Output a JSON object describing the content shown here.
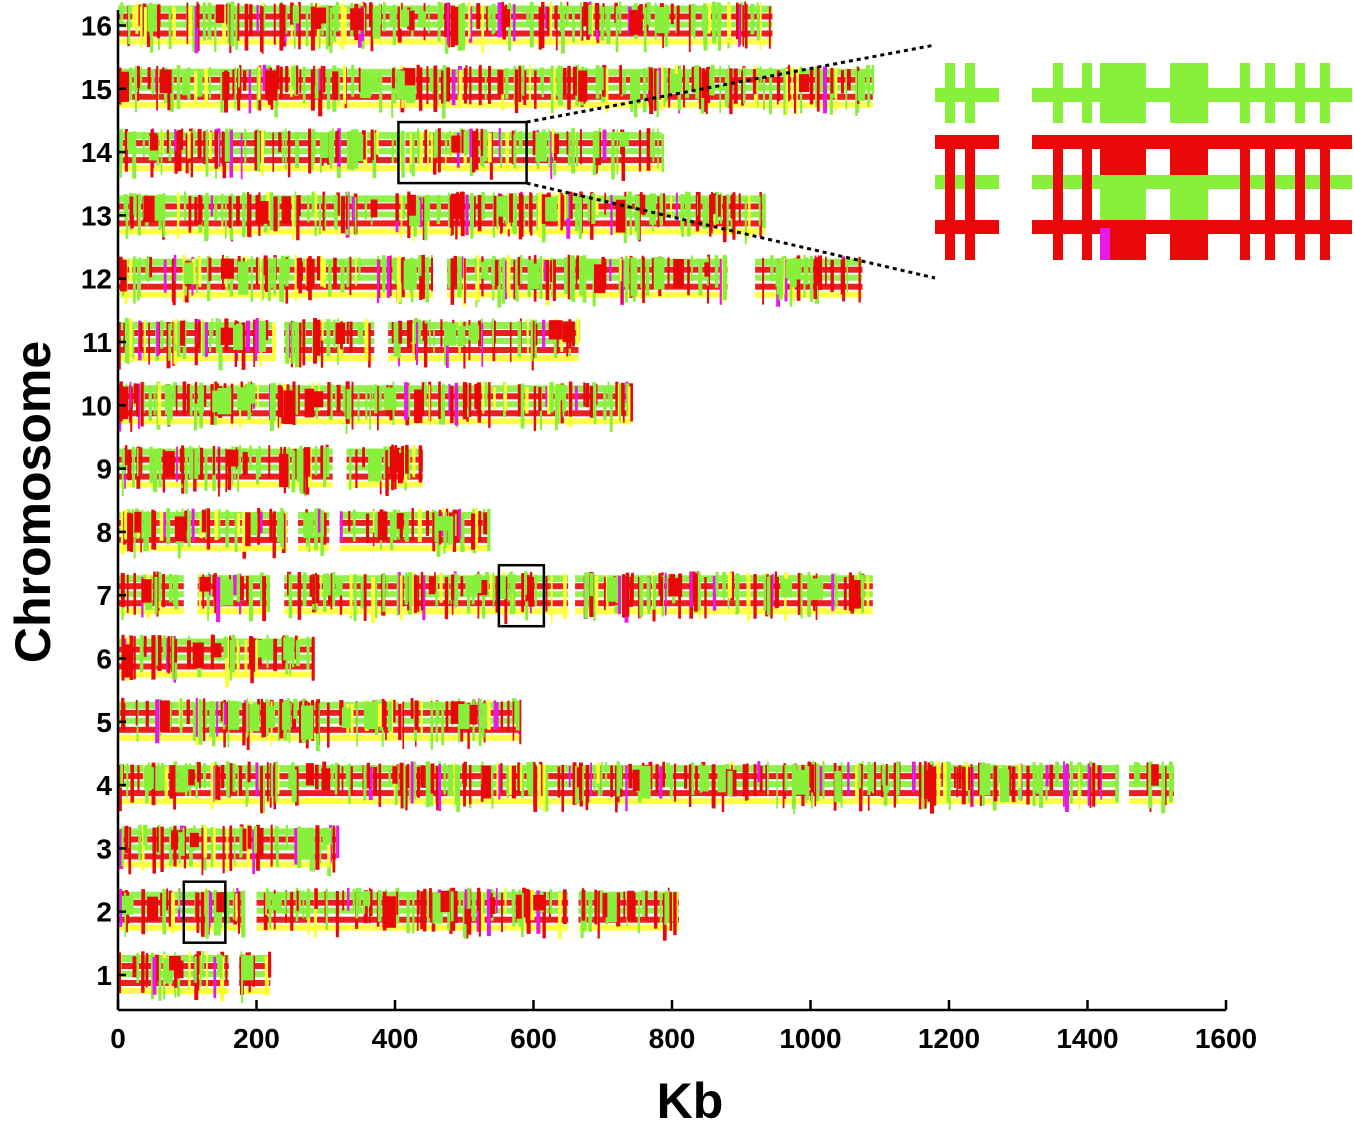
{
  "chart_data": {
    "type": "track",
    "xlabel": "Kb",
    "ylabel": "Chromosome",
    "xlim": [
      0,
      1600
    ],
    "xticks": [
      "0",
      "200",
      "400",
      "600",
      "800",
      "1000",
      "1200",
      "1400",
      "1600"
    ],
    "yticks": [
      "1",
      "2",
      "3",
      "4",
      "5",
      "6",
      "7",
      "8",
      "9",
      "10",
      "11",
      "12",
      "13",
      "14",
      "15",
      "16"
    ],
    "grid": false,
    "colors": {
      "green": "#88f03a",
      "red": "#e80808",
      "yellow": "#ffff33",
      "magenta": "#e818e8",
      "frame": "#000000"
    },
    "chromosomes": [
      {
        "label": "1",
        "length_kb": 220,
        "segments": [
          [
            0,
            160
          ],
          [
            175,
            220
          ]
        ]
      },
      {
        "label": "2",
        "length_kb": 810,
        "segments": [
          [
            0,
            180
          ],
          [
            200,
            650
          ],
          [
            665,
            810
          ]
        ]
      },
      {
        "label": "3",
        "length_kb": 315,
        "segments": [
          [
            0,
            315
          ]
        ]
      },
      {
        "label": "4",
        "length_kb": 1525,
        "segments": [
          [
            0,
            1445
          ],
          [
            1460,
            1525
          ]
        ]
      },
      {
        "label": "5",
        "length_kb": 580,
        "segments": [
          [
            0,
            405
          ],
          [
            410,
            580
          ]
        ]
      },
      {
        "label": "6",
        "length_kb": 280,
        "segments": [
          [
            0,
            280
          ]
        ]
      },
      {
        "label": "7",
        "length_kb": 1090,
        "segments": [
          [
            0,
            95
          ],
          [
            115,
            215
          ],
          [
            240,
            650
          ],
          [
            660,
            1090
          ]
        ]
      },
      {
        "label": "8",
        "length_kb": 535,
        "segments": [
          [
            0,
            245
          ],
          [
            260,
            305
          ],
          [
            320,
            535
          ]
        ]
      },
      {
        "label": "9",
        "length_kb": 440,
        "segments": [
          [
            0,
            310
          ],
          [
            330,
            440
          ]
        ]
      },
      {
        "label": "10",
        "length_kb": 740,
        "segments": [
          [
            0,
            740
          ]
        ]
      },
      {
        "label": "11",
        "length_kb": 665,
        "segments": [
          [
            0,
            225
          ],
          [
            240,
            370
          ],
          [
            390,
            665
          ]
        ]
      },
      {
        "label": "12",
        "length_kb": 1075,
        "segments": [
          [
            0,
            455
          ],
          [
            475,
            880
          ],
          [
            920,
            1075
          ]
        ]
      },
      {
        "label": "13",
        "length_kb": 935,
        "segments": [
          [
            0,
            935
          ]
        ]
      },
      {
        "label": "14",
        "length_kb": 785,
        "segments": [
          [
            0,
            410
          ],
          [
            415,
            785
          ]
        ]
      },
      {
        "label": "15",
        "length_kb": 1090,
        "segments": [
          [
            0,
            1090
          ]
        ]
      },
      {
        "label": "16",
        "length_kb": 945,
        "segments": [
          [
            0,
            945
          ]
        ]
      }
    ],
    "highlight_boxes": [
      {
        "chromosome": "14",
        "x_range_kb": [
          405,
          590
        ]
      },
      {
        "chromosome": "7",
        "x_range_kb": [
          550,
          615
        ]
      },
      {
        "chromosome": "2",
        "x_range_kb": [
          95,
          155
        ]
      }
    ],
    "zoom_inset": {
      "source_chromosome": "14",
      "source_range_kb": [
        405,
        590
      ],
      "rows": [
        "green",
        "red",
        "green",
        "red"
      ]
    }
  }
}
